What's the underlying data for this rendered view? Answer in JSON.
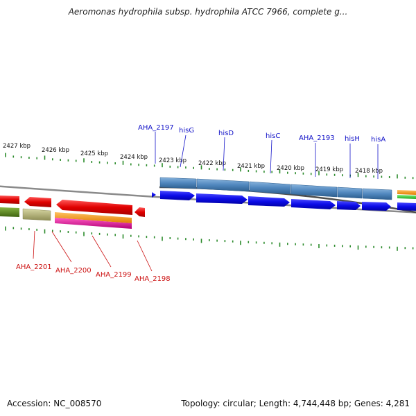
{
  "title": "Aeromonas hydrophila subsp. hydrophila ATCC 7966, complete g...",
  "footer": {
    "accession": "Accession: NC_008570",
    "topology": "Topology: circular; Length: 4,744,448 bp; Genes: 4,281"
  },
  "colors": {
    "backbone": "#8a8a8a",
    "tick": "#2a8a2a",
    "forward_strand_label": "#1212c8",
    "reverse_strand_label": "#cc1111"
  },
  "scale": {
    "unit": "kbp",
    "labels": [
      "2427 kbp",
      "2426 kbp",
      "2425 kbp",
      "2424 kbp",
      "2423 kbp",
      "2422 kbp",
      "2421 kbp",
      "2420 kbp",
      "2419 kbp",
      "2418 kbp"
    ]
  },
  "genes_top": [
    {
      "name": "AHA_2197"
    },
    {
      "name": "hisG"
    },
    {
      "name": "hisD"
    },
    {
      "name": "hisC"
    },
    {
      "name": "AHA_2193"
    },
    {
      "name": "hisH"
    },
    {
      "name": "hisA"
    }
  ],
  "genes_bottom": [
    {
      "name": "AHA_2201"
    },
    {
      "name": "AHA_2200"
    },
    {
      "name": "AHA_2199"
    },
    {
      "name": "AHA_2198"
    }
  ],
  "feature_colors": {
    "cds": "#ee0000",
    "gene_fwd": "#1010ee",
    "operon_fwd": "#4f86bd",
    "misc_olive": "#b9b878",
    "green": "#5c8a1e",
    "orange": "#f29a1a",
    "magenta": "#e0189a",
    "bright_green": "#3bcf3b"
  }
}
